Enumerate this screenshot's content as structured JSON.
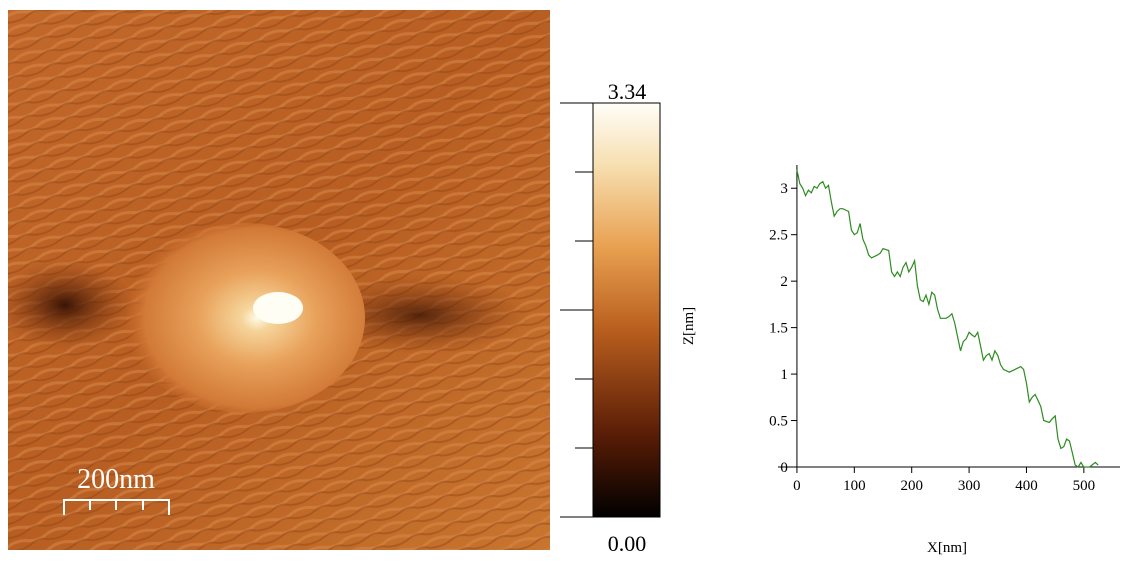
{
  "afm_image": {
    "scale_bar": "200nm"
  },
  "colorbar": {
    "ylim": [
      0,
      3.34
    ],
    "yticks": [
      {
        "value": 0,
        "label": "0.00"
      },
      {
        "value": 3.34,
        "label": "3.34"
      }
    ]
  },
  "chart_data": {
    "type": "line",
    "xlabel": "X[nm]",
    "ylabel": "Z[nm]",
    "color": "#2e8b22",
    "x": [
      0,
      5,
      10,
      15,
      20,
      25,
      30,
      35,
      40,
      45,
      50,
      55,
      60,
      65,
      70,
      75,
      80,
      90,
      95,
      100,
      105,
      110,
      115,
      120,
      125,
      130,
      140,
      145,
      150,
      160,
      165,
      170,
      175,
      180,
      185,
      190,
      195,
      200,
      205,
      210,
      215,
      220,
      225,
      230,
      235,
      240,
      245,
      250,
      260,
      265,
      270,
      275,
      280,
      285,
      290,
      295,
      300,
      305,
      310,
      315,
      320,
      325,
      330,
      335,
      340,
      345,
      350,
      355,
      360,
      370,
      380,
      390,
      395,
      400,
      405,
      410,
      415,
      420,
      425,
      430,
      440,
      445,
      450,
      455,
      460,
      465,
      470,
      475,
      480,
      485,
      490,
      495,
      500,
      510,
      520,
      525
    ],
    "values": [
      3.2,
      3.05,
      3.0,
      2.92,
      2.98,
      2.95,
      3.02,
      3.0,
      3.05,
      3.07,
      3.0,
      3.03,
      2.85,
      2.7,
      2.75,
      2.78,
      2.78,
      2.75,
      2.55,
      2.5,
      2.52,
      2.62,
      2.45,
      2.38,
      2.28,
      2.25,
      2.28,
      2.3,
      2.35,
      2.33,
      2.1,
      2.05,
      2.1,
      2.05,
      2.15,
      2.2,
      2.1,
      2.15,
      2.22,
      1.95,
      1.8,
      1.78,
      1.85,
      1.75,
      1.88,
      1.85,
      1.7,
      1.6,
      1.6,
      1.62,
      1.65,
      1.55,
      1.4,
      1.25,
      1.35,
      1.38,
      1.45,
      1.42,
      1.4,
      1.45,
      1.3,
      1.15,
      1.2,
      1.22,
      1.15,
      1.25,
      1.2,
      1.1,
      1.05,
      1.02,
      1.05,
      1.08,
      1.05,
      0.9,
      0.7,
      0.75,
      0.78,
      0.72,
      0.65,
      0.5,
      0.48,
      0.52,
      0.55,
      0.3,
      0.2,
      0.22,
      0.3,
      0.28,
      0.15,
      0.02,
      0.0,
      0.05,
      0.0,
      0.0,
      0.05,
      0.02
    ],
    "xlim": [
      -33,
      563
    ],
    "ylim": [
      0,
      3.25
    ],
    "xticks": [
      0,
      100,
      200,
      300,
      400,
      500
    ],
    "yticks": [
      0,
      0.5,
      1,
      1.5,
      2,
      2.5,
      3
    ]
  }
}
